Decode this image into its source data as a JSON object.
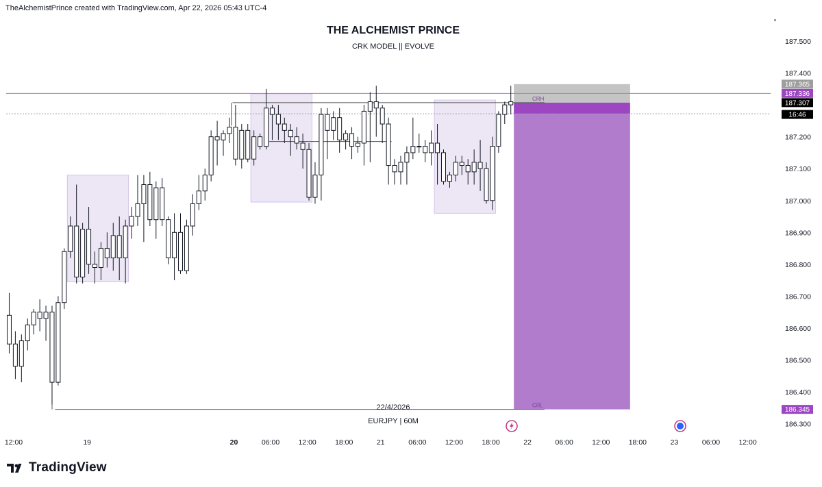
{
  "header": {
    "attribution": "TheAlchemistPrince created with TradingView.com, Apr 22, 2026 05:43 UTC-4"
  },
  "brand": {
    "name": "TradingView"
  },
  "colors": {
    "accent_purple": "#9b4fbf",
    "zone_fill": "#ede6f5",
    "zone_stroke": "#d4c4ea",
    "stop_grey": "#c4c4c4",
    "target_purple": "#b07ccb",
    "entry_purple": "#9c46c2",
    "candle_stroke": "#131722"
  },
  "chart_data": {
    "type": "candlestick",
    "title": "THE ALCHEMIST PRINCE",
    "subtitle": "CRK MODEL || EVOLVE",
    "date_note": "22/4/2026",
    "symbol_label": "EURJPY | 60M",
    "ylim": [
      186.31,
      187.58
    ],
    "y_ticks": [
      "187.500",
      "187.400",
      "187.200",
      "187.100",
      "187.000",
      "186.900",
      "186.800",
      "186.700",
      "186.600",
      "186.500",
      "186.400",
      "186.300"
    ],
    "x_ticks": [
      {
        "label": "12:00",
        "t": 0,
        "bold": false
      },
      {
        "label": "19",
        "t": 12,
        "bold": false
      },
      {
        "label": "20",
        "t": 36,
        "bold": true
      },
      {
        "label": "06:00",
        "t": 42,
        "bold": false
      },
      {
        "label": "12:00",
        "t": 48,
        "bold": false
      },
      {
        "label": "18:00",
        "t": 54,
        "bold": false
      },
      {
        "label": "21",
        "t": 60,
        "bold": false
      },
      {
        "label": "06:00",
        "t": 66,
        "bold": false
      },
      {
        "label": "12:00",
        "t": 72,
        "bold": false
      },
      {
        "label": "18:00",
        "t": 78,
        "bold": false
      },
      {
        "label": "22",
        "t": 84,
        "bold": false
      },
      {
        "label": "06:00",
        "t": 90,
        "bold": false
      },
      {
        "label": "12:00",
        "t": 96,
        "bold": false
      },
      {
        "label": "18:00",
        "t": 102,
        "bold": false
      },
      {
        "label": "23",
        "t": 108,
        "bold": false
      },
      {
        "label": "06:00",
        "t": 114,
        "bold": false
      },
      {
        "label": "12:00",
        "t": 120,
        "bold": false
      }
    ],
    "price_labels": [
      {
        "text": "187.365",
        "value": 187.365,
        "bg": "#9e9e9e",
        "fg": "#ffffff"
      },
      {
        "text": "187.336",
        "value": 187.336,
        "bg": "#9c46c2",
        "fg": "#ffffff"
      },
      {
        "text": "187.307",
        "value": 187.307,
        "bg": "#000000",
        "fg": "#ffffff"
      },
      {
        "text": "16:46",
        "value": 187.27,
        "bg": "#000000",
        "fg": "#ffffff"
      },
      {
        "text": "186.345",
        "value": 186.345,
        "bg": "#9c46c2",
        "fg": "#ffffff"
      }
    ],
    "zones": [
      {
        "t0": 10,
        "t1": 20,
        "top": 187.08,
        "bottom": 186.745
      },
      {
        "t0": 40,
        "t1": 50,
        "top": 187.335,
        "bottom": 186.995
      },
      {
        "t0": 70,
        "t1": 80,
        "top": 187.315,
        "bottom": 186.96
      }
    ],
    "levels": [
      {
        "name": "resistance",
        "value": 187.336,
        "t0": 0,
        "t1": 125,
        "color": "#b07ccb",
        "dash": false
      },
      {
        "name": "entry",
        "value": 187.272,
        "t0": 0,
        "t1": 125,
        "color": "#9e9e9e",
        "dash": true
      },
      {
        "name": "crh",
        "value": 187.307,
        "t0": 37,
        "t1": 88,
        "color": "#555555",
        "dash": false
      },
      {
        "name": "crl",
        "value": 186.345,
        "t0": 8,
        "t1": 88,
        "color": "#555555",
        "dash": false
      },
      {
        "name": "mid",
        "value": 187.185,
        "t0": 43,
        "t1": 63,
        "color": "#555555",
        "dash": false
      }
    ],
    "level_labels": [
      {
        "text": "CRH",
        "t": 86,
        "value": 187.307
      },
      {
        "text": "CRL",
        "t": 86,
        "value": 186.345
      }
    ],
    "position": {
      "t0": 83,
      "t1": 102,
      "stop": 187.365,
      "entry": 187.307,
      "entry_low": 187.272,
      "target": 186.345
    },
    "candles": [
      [
        186.64,
        186.71,
        186.52,
        186.55
      ],
      [
        186.55,
        186.59,
        186.44,
        186.48
      ],
      [
        186.48,
        186.58,
        186.43,
        186.56
      ],
      [
        186.56,
        186.63,
        186.53,
        186.61
      ],
      [
        186.61,
        186.66,
        186.58,
        186.65
      ],
      [
        186.65,
        186.69,
        186.59,
        186.63
      ],
      [
        186.63,
        186.67,
        186.56,
        186.65
      ],
      [
        186.65,
        186.67,
        186.36,
        186.43
      ],
      [
        186.43,
        186.7,
        186.42,
        186.68
      ],
      [
        186.68,
        186.85,
        186.66,
        186.84
      ],
      [
        186.84,
        186.95,
        186.82,
        186.92
      ],
      [
        186.92,
        187.05,
        186.74,
        186.76
      ],
      [
        186.76,
        186.93,
        186.74,
        186.91
      ],
      [
        186.91,
        186.98,
        186.77,
        186.8
      ],
      [
        186.8,
        186.84,
        186.74,
        186.79
      ],
      [
        186.79,
        186.87,
        186.75,
        186.85
      ],
      [
        186.85,
        186.9,
        186.79,
        186.82
      ],
      [
        186.82,
        186.93,
        186.78,
        186.89
      ],
      [
        186.89,
        186.95,
        186.75,
        186.82
      ],
      [
        186.82,
        186.94,
        186.74,
        186.92
      ],
      [
        186.92,
        186.98,
        186.88,
        186.95
      ],
      [
        186.95,
        187.08,
        186.92,
        186.99
      ],
      [
        186.99,
        187.08,
        186.87,
        187.05
      ],
      [
        187.05,
        187.09,
        186.92,
        186.94
      ],
      [
        186.94,
        187.06,
        186.88,
        187.04
      ],
      [
        187.04,
        187.07,
        186.92,
        186.94
      ],
      [
        186.94,
        186.95,
        186.8,
        186.82
      ],
      [
        186.82,
        186.96,
        186.75,
        186.9
      ],
      [
        186.9,
        186.96,
        186.77,
        186.78
      ],
      [
        186.78,
        186.94,
        186.77,
        186.92
      ],
      [
        186.92,
        187.02,
        186.89,
        186.99
      ],
      [
        186.99,
        187.08,
        186.97,
        187.03
      ],
      [
        187.03,
        187.1,
        187.0,
        187.08
      ],
      [
        187.08,
        187.22,
        187.06,
        187.2
      ],
      [
        187.2,
        187.25,
        187.11,
        187.19
      ],
      [
        187.19,
        187.22,
        187.14,
        187.21
      ],
      [
        187.21,
        187.26,
        187.18,
        187.23
      ],
      [
        187.23,
        187.3,
        187.11,
        187.13
      ],
      [
        187.13,
        187.24,
        187.1,
        187.22
      ],
      [
        187.22,
        187.24,
        187.12,
        187.13
      ],
      [
        187.13,
        187.22,
        187.11,
        187.2
      ],
      [
        187.2,
        187.21,
        187.16,
        187.17
      ],
      [
        187.17,
        187.35,
        187.16,
        187.29
      ],
      [
        187.29,
        187.3,
        187.19,
        187.27
      ],
      [
        187.27,
        187.3,
        187.19,
        187.24
      ],
      [
        187.24,
        187.26,
        187.18,
        187.22
      ],
      [
        187.22,
        187.24,
        187.14,
        187.2
      ],
      [
        187.2,
        187.23,
        187.16,
        187.18
      ],
      [
        187.18,
        187.21,
        187.1,
        187.16
      ],
      [
        187.16,
        187.18,
        187.0,
        187.01
      ],
      [
        187.01,
        187.12,
        186.99,
        187.08
      ],
      [
        187.08,
        187.29,
        187.0,
        187.27
      ],
      [
        187.27,
        187.29,
        187.13,
        187.22
      ],
      [
        187.22,
        187.28,
        187.19,
        187.26
      ],
      [
        187.26,
        187.29,
        187.15,
        187.19
      ],
      [
        187.19,
        187.22,
        187.16,
        187.21
      ],
      [
        187.21,
        187.23,
        187.13,
        187.17
      ],
      [
        187.17,
        187.2,
        187.15,
        187.18
      ],
      [
        187.18,
        187.3,
        187.11,
        187.28
      ],
      [
        187.28,
        187.34,
        187.12,
        187.31
      ],
      [
        187.31,
        187.36,
        187.2,
        187.29
      ],
      [
        187.29,
        187.3,
        187.18,
        187.24
      ],
      [
        187.24,
        187.26,
        187.05,
        187.11
      ],
      [
        187.11,
        187.13,
        187.05,
        187.09
      ],
      [
        187.09,
        187.14,
        187.05,
        187.12
      ],
      [
        187.12,
        187.17,
        187.05,
        187.15
      ],
      [
        187.15,
        187.26,
        187.13,
        187.17
      ],
      [
        187.17,
        187.21,
        187.15,
        187.17
      ],
      [
        187.17,
        187.19,
        187.12,
        187.15
      ],
      [
        187.15,
        187.22,
        187.11,
        187.18
      ],
      [
        187.18,
        187.24,
        187.05,
        187.15
      ],
      [
        187.15,
        187.16,
        187.05,
        187.06
      ],
      [
        187.06,
        187.09,
        187.04,
        187.08
      ],
      [
        187.08,
        187.14,
        187.06,
        187.12
      ],
      [
        187.12,
        187.14,
        187.08,
        187.11
      ],
      [
        187.11,
        187.13,
        187.05,
        187.09
      ],
      [
        187.09,
        187.16,
        187.05,
        187.12
      ],
      [
        187.12,
        187.19,
        187.03,
        187.1
      ],
      [
        187.1,
        187.12,
        186.99,
        187.0
      ],
      [
        187.0,
        187.2,
        186.97,
        187.17
      ],
      [
        187.17,
        187.28,
        187.15,
        187.27
      ],
      [
        187.27,
        187.31,
        187.24,
        187.3
      ],
      [
        187.3,
        187.36,
        187.27,
        187.31
      ]
    ]
  }
}
